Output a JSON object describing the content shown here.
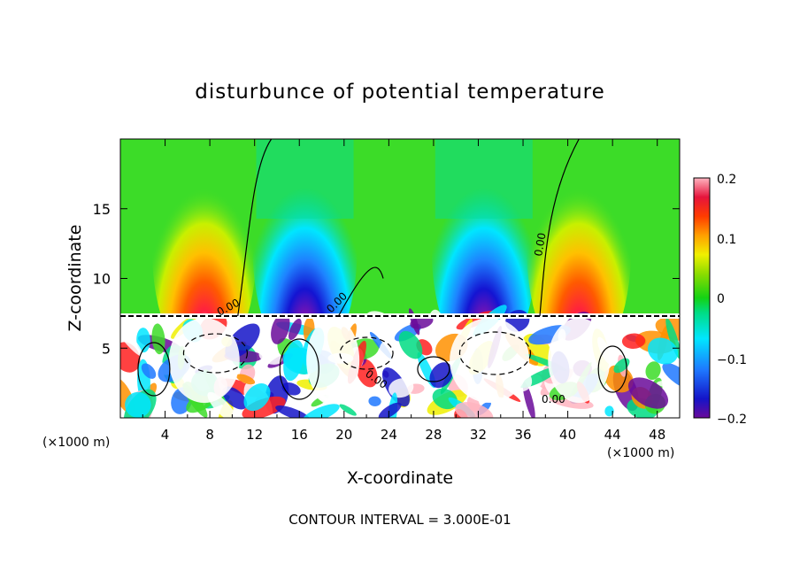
{
  "chart_data": {
    "type": "heatmap",
    "title": "disturbunce of potential temperature",
    "xlabel": "X-coordinate",
    "ylabel": "Z-coordinate",
    "x_unit_label": "(×1000 m)",
    "xlim": [
      0,
      50
    ],
    "ylim": [
      0,
      20
    ],
    "x_ticks": [
      "4",
      "8",
      "12",
      "16",
      "20",
      "24",
      "28",
      "32",
      "36",
      "40",
      "44",
      "48"
    ],
    "y_ticks": [
      "5",
      "10",
      "15"
    ],
    "colorbar": {
      "range": [
        -0.2,
        0.2
      ],
      "tick_labels": [
        "0.2",
        "0.1",
        "0",
        "−0.1",
        "−0.2"
      ]
    },
    "contour_labels": [
      "0.00",
      "0.00",
      "0.00",
      "0.00",
      "0.00"
    ],
    "footnote": "CONTOUR INTERVAL = 3.000E-01",
    "upper_field_extrema": [
      {
        "x": 7.5,
        "z": 8.0,
        "value": 0.2
      },
      {
        "x": 16.5,
        "z": 8.0,
        "value": -0.2
      },
      {
        "x": 32.5,
        "z": 8.0,
        "value": -0.2
      },
      {
        "x": 41.0,
        "z": 8.0,
        "value": 0.2
      }
    ]
  }
}
